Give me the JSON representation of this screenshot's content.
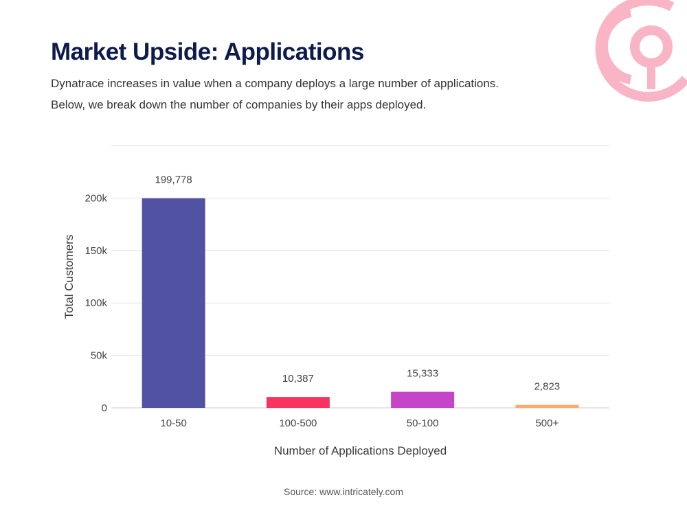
{
  "header": {
    "title": "Market Upside: Applications",
    "subtitle_lines": [
      "Dynatrace increases in value when a company deploys a large number of applications.",
      "Below, we break down the number of companies by their apps deployed."
    ]
  },
  "footer": {
    "source": "Source: www.intricately.com"
  },
  "logo": {
    "icon": "target-pin-logo-icon",
    "color": "#f9b4c6"
  },
  "chart_data": {
    "type": "bar",
    "categories": [
      "10-50",
      "100-500",
      "50-100",
      "500+"
    ],
    "values": [
      199778,
      10387,
      15333,
      2823
    ],
    "data_labels": [
      "199,778",
      "10,387",
      "15,333",
      "2,823"
    ],
    "colors": [
      "#5152a3",
      "#f7335f",
      "#c544c8",
      "#fcab70"
    ],
    "title": "",
    "xlabel": "Number of Applications Deployed",
    "ylabel": "Total Customers",
    "ylim": [
      0,
      250000
    ],
    "yticks": [
      0,
      50000,
      100000,
      150000,
      200000
    ],
    "ytick_labels": [
      "0",
      "50k",
      "100k",
      "150k",
      "200k"
    ],
    "grid": true,
    "legend": "none"
  }
}
